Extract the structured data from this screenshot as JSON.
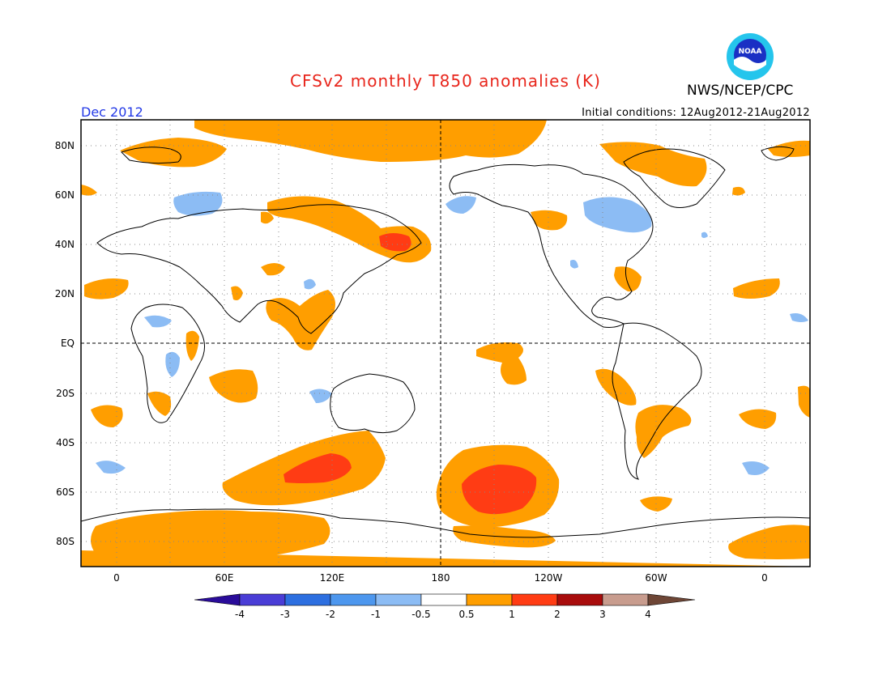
{
  "title": "CFSv2 monthly T850 anomalies (K)",
  "org_label": "NWS/NCEP/CPC",
  "logo_text": "NOAA",
  "valid_month": "Dec 2012",
  "initial_conditions": "Initial conditions: 12Aug2012-21Aug2012",
  "lat_labels": [
    "80N",
    "60N",
    "40N",
    "20N",
    "EQ",
    "20S",
    "40S",
    "60S",
    "80S"
  ],
  "lon_labels": [
    "0",
    "60E",
    "120E",
    "180",
    "120W",
    "60W",
    "0"
  ],
  "legend": {
    "ticks": [
      "-4",
      "-3",
      "-2",
      "-1",
      "-0.5",
      "0.5",
      "1",
      "2",
      "3",
      "4"
    ],
    "colors": [
      "#2a0c9a",
      "#4a3dd6",
      "#2d6fe0",
      "#4d97ee",
      "#8cbcf4",
      "#ffffff",
      "#ff9e00",
      "#ff3c14",
      "#a80c0c",
      "#c89c8e",
      "#6e4636"
    ]
  }
}
